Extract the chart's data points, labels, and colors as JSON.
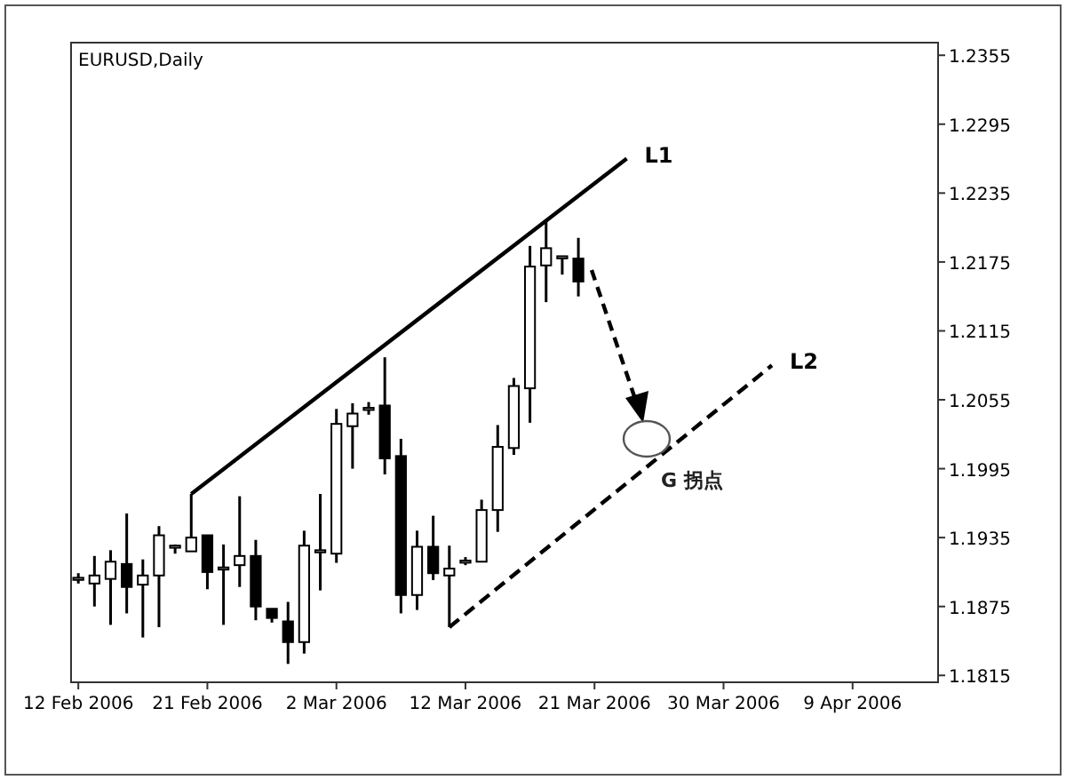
{
  "chart_data": {
    "type": "candlestick",
    "title": "EURUSD,Daily",
    "categories": [
      "12 Feb 2006",
      null,
      null,
      null,
      null,
      null,
      null,
      null,
      "21 Feb 2006",
      null,
      null,
      null,
      null,
      null,
      null,
      null,
      "2 Mar 2006",
      null,
      null,
      null,
      null,
      null,
      null,
      null,
      "12 Mar 2006",
      null,
      null,
      null,
      null,
      null,
      null,
      null,
      "21 Mar 2006",
      null,
      null,
      null,
      null,
      null,
      null,
      null,
      "30 Mar 2006",
      null,
      null,
      null,
      null,
      null,
      null,
      null,
      "9 Apr 2006",
      null,
      null,
      null,
      null,
      null
    ],
    "ohlc": [
      [
        1.1899,
        1.1904,
        1.1895,
        1.19
      ],
      [
        1.1895,
        1.1919,
        1.1875,
        1.1902
      ],
      [
        1.1899,
        1.1924,
        1.1859,
        1.1914
      ],
      [
        1.1912,
        1.1956,
        1.1869,
        1.1892
      ],
      [
        1.1894,
        1.1916,
        1.1848,
        1.1902
      ],
      [
        1.1902,
        1.1945,
        1.1857,
        1.1937
      ],
      [
        1.1927,
        1.1929,
        1.1921,
        1.1928
      ],
      [
        1.1923,
        1.1973,
        1.1923,
        1.1935
      ],
      [
        1.1937,
        1.1937,
        1.189,
        1.1905
      ],
      [
        1.1909,
        1.1929,
        1.1859,
        1.1909
      ],
      [
        1.1911,
        1.1971,
        1.1892,
        1.1919
      ],
      [
        1.1919,
        1.1933,
        1.1863,
        1.1875
      ],
      [
        1.1873,
        1.1873,
        1.1861,
        1.1865
      ],
      [
        1.1862,
        1.1879,
        1.1825,
        1.1844
      ],
      [
        1.1844,
        1.1941,
        1.1834,
        1.1928
      ],
      [
        1.1924,
        1.1973,
        1.1889,
        1.1924
      ],
      [
        1.1921,
        1.2047,
        1.1913,
        1.2034
      ],
      [
        1.2032,
        1.2052,
        1.1995,
        1.2043
      ],
      [
        1.2048,
        1.2053,
        1.2042,
        1.2048
      ],
      [
        1.205,
        1.2092,
        1.199,
        1.2004
      ],
      [
        1.2006,
        1.2021,
        1.1869,
        1.1885
      ],
      [
        1.1885,
        1.1941,
        1.1872,
        1.1927
      ],
      [
        1.1927,
        1.1954,
        1.1898,
        1.1904
      ],
      [
        1.1902,
        1.1928,
        1.1857,
        1.1908
      ],
      [
        1.1915,
        1.1918,
        1.1911,
        1.1915
      ],
      [
        1.1914,
        1.1968,
        1.1914,
        1.1959
      ],
      [
        1.1959,
        1.2033,
        1.194,
        1.2014
      ],
      [
        1.2013,
        1.2074,
        1.2007,
        1.2067
      ],
      [
        1.2065,
        1.2189,
        1.2035,
        1.2171
      ],
      [
        1.2172,
        1.2211,
        1.214,
        1.2187
      ],
      [
        1.218,
        1.218,
        1.2164,
        1.218
      ],
      [
        1.2178,
        1.2196,
        1.2145,
        1.2158
      ],
      null,
      null,
      null,
      null,
      null,
      null,
      null,
      null,
      null,
      null,
      null,
      null,
      null,
      null,
      null,
      null,
      null,
      null,
      null,
      null,
      null,
      null
    ],
    "series": [
      {
        "name": "L1",
        "type": "line",
        "values": [
          null,
          null,
          null,
          null,
          null,
          null,
          null,
          1.1973,
          null,
          null,
          null,
          null,
          null,
          null,
          null,
          null,
          null,
          null,
          null,
          null,
          null,
          null,
          null,
          null,
          null,
          null,
          null,
          null,
          null,
          null,
          null,
          null,
          null,
          null,
          1.2265,
          null,
          null,
          null,
          null,
          null,
          null,
          null,
          null,
          null,
          null,
          null,
          null,
          null,
          null,
          null,
          null,
          null,
          null,
          null
        ],
        "color": "#000000",
        "line_style": "solid"
      },
      {
        "name": "L2",
        "type": "line",
        "values": [
          null,
          null,
          null,
          null,
          null,
          null,
          null,
          null,
          null,
          null,
          null,
          null,
          null,
          null,
          null,
          null,
          null,
          null,
          null,
          null,
          null,
          null,
          null,
          1.1857,
          null,
          null,
          null,
          null,
          null,
          null,
          null,
          null,
          null,
          null,
          null,
          null,
          null,
          null,
          null,
          null,
          null,
          null,
          null,
          1.2085,
          null,
          null,
          null,
          null,
          null,
          null,
          null,
          null,
          null,
          null
        ],
        "color": "#000000",
        "line_style": "dashed"
      }
    ],
    "ylim": [
      1.1809,
      1.2366
    ],
    "yticks": [
      1.2355,
      1.2295,
      1.2235,
      1.2175,
      1.2115,
      1.2055,
      1.1995,
      1.1935,
      1.1875,
      1.1815
    ],
    "annotations": [
      "G 拐点"
    ]
  }
}
